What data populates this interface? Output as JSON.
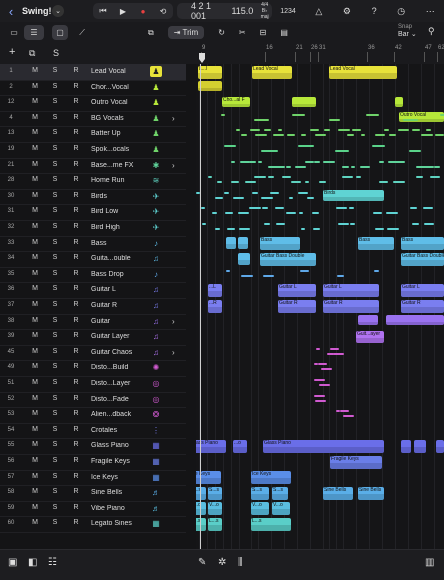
{
  "topbar": {
    "back_icon": "chevron-left-icon",
    "project_title": "Swing!",
    "transport": {
      "rewind": "⏮",
      "play": "▶",
      "record": "●",
      "cycle": "⟲"
    },
    "lcd": {
      "position": "4 2 1 001",
      "tempo": "115.0",
      "time_sig": "4/4",
      "key": "B♭ maj"
    },
    "count_in": "1234"
  },
  "toolbar2": {
    "trim_label": "Trim",
    "snap_label": "Snap",
    "snap_value": "Bar"
  },
  "track_header": {
    "add": "+",
    "dup": "⧉",
    "s": "S"
  },
  "ruler": [
    {
      "bar": "9",
      "pos": 0.02
    },
    {
      "bar": "16",
      "pos": 0.28
    },
    {
      "bar": "21",
      "pos": 0.4
    },
    {
      "bar": "26",
      "pos": 0.46
    },
    {
      "bar": "31",
      "pos": 0.49
    },
    {
      "bar": "36",
      "pos": 0.69
    },
    {
      "bar": "42",
      "pos": 0.8
    },
    {
      "bar": "47",
      "pos": 0.92
    },
    {
      "bar": "62",
      "pos": 0.97
    }
  ],
  "tracks": [
    {
      "num": "1",
      "name": "Lead Vocal",
      "icon": "person-icon",
      "color": "#e8e33a",
      "selected": true
    },
    {
      "num": "2",
      "name": "Chor...Vocal",
      "icon": "person-icon",
      "color": "#b7e83a"
    },
    {
      "num": "12",
      "name": "Outro Vocal",
      "icon": "person-icon",
      "color": "#b7e83a"
    },
    {
      "num": "4",
      "name": "BG Vocals",
      "icon": "group-icon",
      "color": "#6fd36a",
      "folder": true
    },
    {
      "num": "13",
      "name": "Batter Up",
      "icon": "person-icon",
      "color": "#6fd36a"
    },
    {
      "num": "19",
      "name": "Spok...ocals",
      "icon": "group-icon",
      "color": "#6fd36a"
    },
    {
      "num": "21",
      "name": "Base...me FX",
      "icon": "fx-icon",
      "color": "#5fd39a",
      "folder": true
    },
    {
      "num": "28",
      "name": "Home Run",
      "icon": "waveform-icon",
      "color": "#5fd3c0"
    },
    {
      "num": "30",
      "name": "Birds",
      "icon": "bird-icon",
      "color": "#5fd3d3"
    },
    {
      "num": "31",
      "name": "Bird Low",
      "icon": "bird-icon",
      "color": "#5fd3d3"
    },
    {
      "num": "32",
      "name": "Bird High",
      "icon": "bird-icon",
      "color": "#5fd3d3"
    },
    {
      "num": "33",
      "name": "Bass",
      "icon": "bass-icon",
      "color": "#5fbde8"
    },
    {
      "num": "34",
      "name": "Guita...ouble",
      "icon": "guitar-icon",
      "color": "#5fbde8"
    },
    {
      "num": "35",
      "name": "Bass Drop",
      "icon": "bass-icon",
      "color": "#5fa8e8"
    },
    {
      "num": "36",
      "name": "Guitar L",
      "icon": "guitar-icon",
      "color": "#7a7ef0"
    },
    {
      "num": "37",
      "name": "Guitar R",
      "icon": "guitar-icon",
      "color": "#7a7ef0"
    },
    {
      "num": "38",
      "name": "Guitar",
      "icon": "guitar-icon",
      "color": "#9a72f0",
      "folder": true
    },
    {
      "num": "39",
      "name": "Guitar Layer",
      "icon": "guitar-icon",
      "color": "#b072f0"
    },
    {
      "num": "45",
      "name": "Guitar Chaos",
      "icon": "guitar-icon",
      "color": "#b072f0",
      "folder": true
    },
    {
      "num": "49",
      "name": "Disto...Build",
      "icon": "spark-icon",
      "color": "#d05ad0"
    },
    {
      "num": "51",
      "name": "Disto...Layer",
      "icon": "ring-icon",
      "color": "#d05ad0"
    },
    {
      "num": "52",
      "name": "Disto...Fade",
      "icon": "ring-icon",
      "color": "#d05ad0"
    },
    {
      "num": "53",
      "name": "Alien...dback",
      "icon": "swirl-icon",
      "color": "#d05ad0"
    },
    {
      "num": "54",
      "name": "Crotales",
      "icon": "bells-icon",
      "color": "#7a7ef0"
    },
    {
      "num": "55",
      "name": "Glass Piano",
      "icon": "keyboard-icon",
      "color": "#6a6ee8"
    },
    {
      "num": "56",
      "name": "Fragile Keys",
      "icon": "keyboard-icon",
      "color": "#6a7ee8"
    },
    {
      "num": "57",
      "name": "Ice Keys",
      "icon": "keyboard-icon",
      "color": "#5a8ee8"
    },
    {
      "num": "58",
      "name": "Sine Bells",
      "icon": "piano-icon",
      "color": "#5aaee8"
    },
    {
      "num": "59",
      "name": "Vibe Piano",
      "icon": "piano-icon",
      "color": "#5abee0"
    },
    {
      "num": "60",
      "name": "Legato Sines",
      "icon": "keyboard-icon",
      "color": "#5acec8"
    }
  ],
  "track_buttons": {
    "mute": "M",
    "solo": "S",
    "record": "R"
  },
  "regions": {
    "lead_vocal": [
      "L...l",
      "Lead Vocal",
      "Lead Vocal"
    ],
    "chorus": [
      "Cho...al F"
    ],
    "outro": [
      "Outro Vocal"
    ],
    "birds": [
      "Birds"
    ],
    "bass": [
      "Bass",
      "Bass",
      "Bass"
    ],
    "guitar_double": [
      "Guitar Bass Double",
      "Guitar Bass Double"
    ],
    "guitar_l": [
      "...L",
      "Guitar L",
      "Guitar L",
      "Guitar L"
    ],
    "guitar_r": [
      "...R",
      "Guitar R",
      "Guitar R",
      "Guitar R"
    ],
    "guitar_layer": [
      "Guit...ayer"
    ],
    "glass_piano": [
      "Glass Piano",
      "...o",
      "Glass Piano"
    ],
    "fragile": [
      "Fragile Keys"
    ],
    "ice": [
      "Ice Keys",
      "Ice Keys"
    ],
    "sine": [
      "S...s",
      "S...s",
      "S...s",
      "S...s",
      "Sine Bells",
      "Sine Bells"
    ],
    "vibe": [
      "V...o",
      "V...o",
      "V...o",
      "V...o"
    ],
    "legato": [
      "L...s",
      "L...s",
      "L...s"
    ]
  }
}
